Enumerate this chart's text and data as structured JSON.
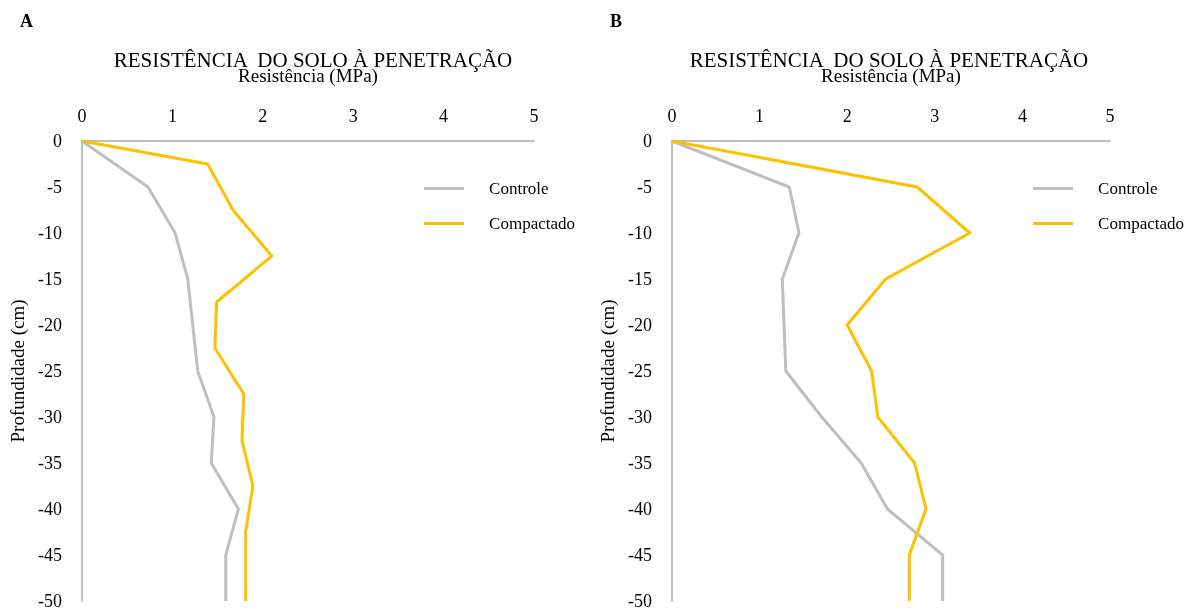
{
  "chart_data": [
    {
      "type": "line",
      "title": "RESISTÊNCIA  DO SOLO À PENETRAÇÃO",
      "xlabel": "Resistência (MPa)",
      "ylabel": "Profundidade (cm)",
      "annotations": [
        "A"
      ],
      "series": [
        {
          "name": "Controle",
          "color": "#bfbfbf",
          "x": [
            0,
            0.73,
            1.03,
            1.17,
            1.28,
            1.46,
            1.43,
            1.73,
            1.59,
            1.59
          ],
          "values": [
            0,
            -5,
            -10,
            -15,
            -25,
            -30,
            -35,
            -40,
            -45,
            -50
          ]
        },
        {
          "name": "Compactado",
          "color": "#ffc000",
          "x": [
            0,
            1.39,
            1.67,
            2.1,
            1.49,
            1.47,
            1.79,
            1.77,
            1.89,
            1.81,
            1.81
          ],
          "values": [
            0,
            -2.5,
            -7.5,
            -12.5,
            -17.5,
            -22.5,
            -27.5,
            -32.5,
            -37.5,
            -42.5,
            -50
          ]
        }
      ],
      "xlim": [
        0,
        5
      ],
      "xticks": [
        0,
        1,
        2,
        3,
        4,
        5
      ],
      "ylim": [
        -50,
        0
      ],
      "yticks": [
        -50,
        -45,
        -40,
        -35,
        -30,
        -25,
        -20,
        -15,
        -10,
        -5,
        0
      ],
      "grid": false,
      "legend": "top right",
      "marker": "none",
      "line_style": "solid"
    },
    {
      "type": "line",
      "title": "RESISTÊNCIA  DO SOLO À PENETRAÇÃO",
      "xlabel": "Resistência (MPa)",
      "ylabel": "Profundidade (cm)",
      "annotations": [
        "B"
      ],
      "series": [
        {
          "name": "Controle",
          "color": "#bfbfbf",
          "x": [
            0,
            1.34,
            1.45,
            1.26,
            1.3,
            1.71,
            2.16,
            2.46,
            3.09,
            3.09
          ],
          "values": [
            0,
            -5,
            -10,
            -15,
            -25,
            -30,
            -35,
            -40,
            -45,
            -50
          ]
        },
        {
          "name": "Compactado",
          "color": "#ffc000",
          "x": [
            0,
            2.8,
            3.4,
            2.44,
            2.0,
            2.28,
            2.35,
            2.77,
            2.9,
            2.71,
            2.71
          ],
          "values": [
            0,
            -5,
            -10,
            -15,
            -20,
            -25,
            -30,
            -35,
            -40,
            -45,
            -50
          ]
        }
      ],
      "xlim": [
        0,
        5
      ],
      "xticks": [
        0,
        1,
        2,
        3,
        4,
        5
      ],
      "ylim": [
        -50,
        0
      ],
      "yticks": [
        -50,
        -45,
        -40,
        -35,
        -30,
        -25,
        -20,
        -15,
        -10,
        -5,
        0
      ],
      "grid": false,
      "legend": "top right",
      "marker": "none",
      "line_style": "solid"
    }
  ]
}
